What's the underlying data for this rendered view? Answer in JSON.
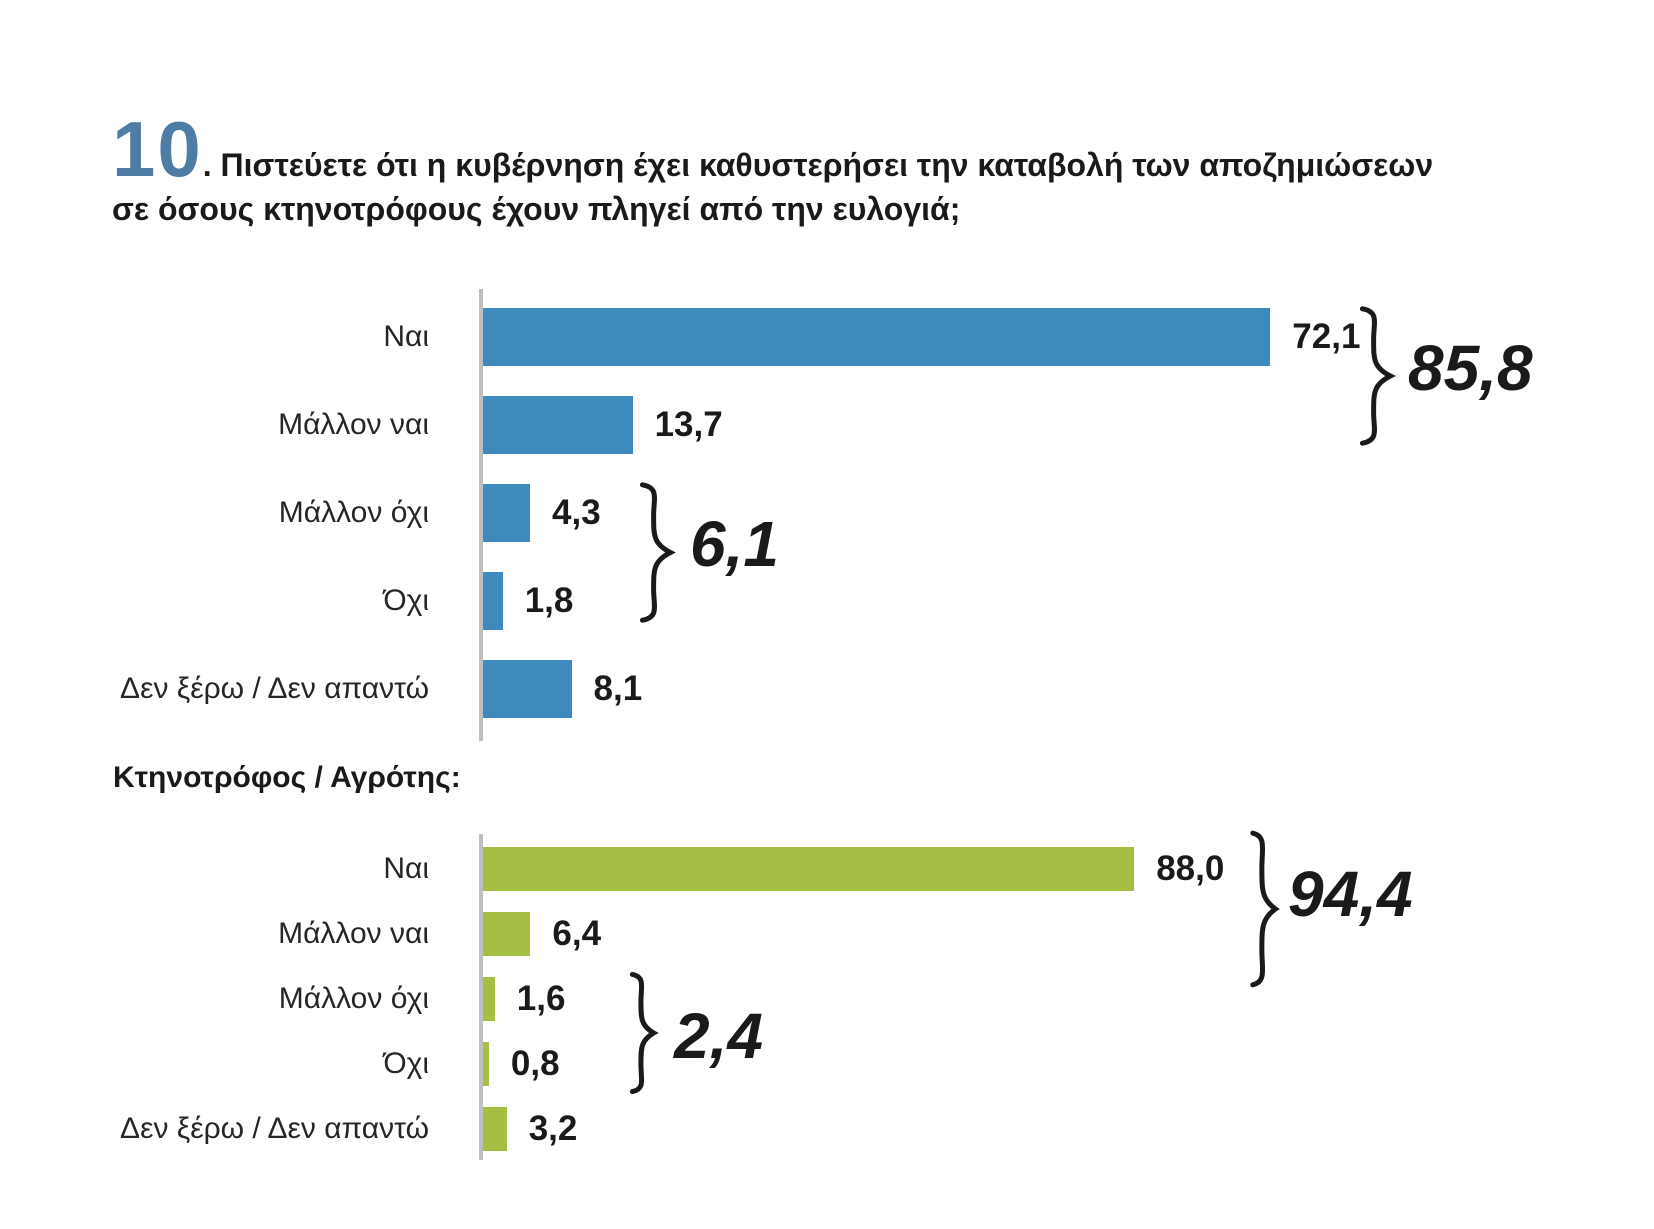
{
  "question": {
    "number": "10",
    "line1": ". Πιστεύετε ότι η κυβέρνηση έχει καθυστερήσει την καταβολή των αποζημιώσεων",
    "line2": "σε όσους κτηνοτρόφους έχουν πληγεί από την ευλογιά;"
  },
  "colors": {
    "bar_blue": "#3d8abf",
    "bar_green": "#a5be44",
    "question_number_blue": "#4e7ca5",
    "axis_gray": "#bfbfbf",
    "text_dark": "#1a1a1a"
  },
  "chart_data": [
    {
      "type": "bar",
      "orientation": "horizontal",
      "bar_color": "#3d8abf",
      "categories": [
        "Ναι",
        "Μάλλον ναι",
        "Μάλλον όχι",
        "Όχι",
        "Δεν ξέρω / Δεν απαντώ"
      ],
      "values": [
        72.1,
        13.7,
        4.3,
        1.8,
        8.1
      ],
      "value_labels": [
        "72,1",
        "13,7",
        "4,3",
        "1,8",
        "8,1"
      ],
      "xlim": [
        0,
        100
      ],
      "grid": false,
      "groups": [
        {
          "label": "85,8",
          "value": 85.8,
          "covers": [
            "Ναι",
            "Μάλλον ναι"
          ]
        },
        {
          "label": "6,1",
          "value": 6.1,
          "covers": [
            "Μάλλον όχι",
            "Όχι"
          ]
        }
      ]
    },
    {
      "type": "bar",
      "orientation": "horizontal",
      "bar_color": "#a5be44",
      "group_label": "Κτηνοτρόφος / Αγρότης:",
      "categories": [
        "Ναι",
        "Μάλλον ναι",
        "Μάλλον όχι",
        "Όχι",
        "Δεν ξέρω / Δεν απαντώ"
      ],
      "values": [
        88.0,
        6.4,
        1.6,
        0.8,
        3.2
      ],
      "value_labels": [
        "88,0",
        "6,4",
        "1,6",
        "0,8",
        "3,2"
      ],
      "xlim": [
        0,
        100
      ],
      "grid": false,
      "groups": [
        {
          "label": "94,4",
          "value": 94.4,
          "covers": [
            "Ναι",
            "Μάλλον ναι"
          ]
        },
        {
          "label": "2,4",
          "value": 2.4,
          "covers": [
            "Μάλλον όχι",
            "Όχι"
          ]
        }
      ]
    }
  ]
}
